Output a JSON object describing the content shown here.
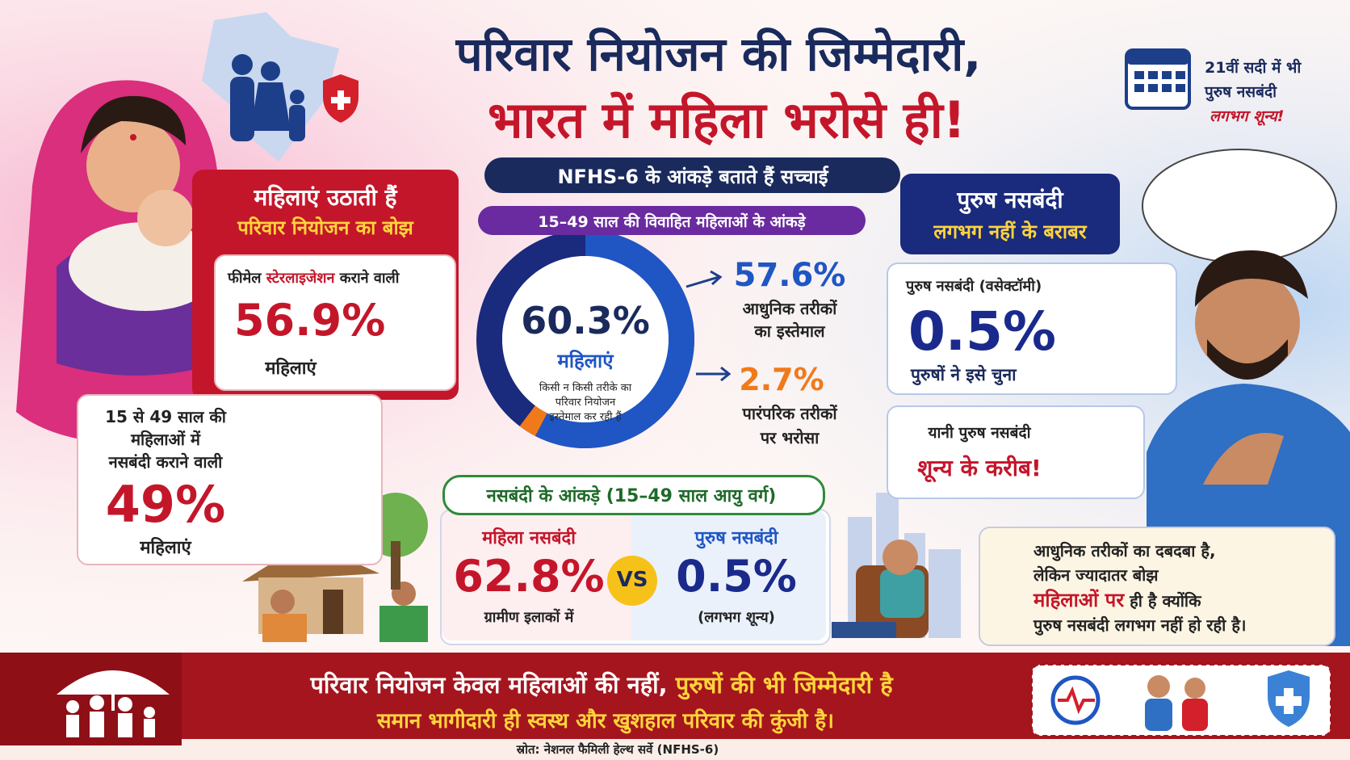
{
  "title": {
    "line1": "परिवार नियोजन की जिम्मेदारी,",
    "line2": "भारत में महिला भरोसे ही!"
  },
  "badge": {
    "line1": "21वीं सदी में भी",
    "line2": "पुरुष नसबंदी",
    "line3": "लगभग शून्य!"
  },
  "subtitle_banner": "NFHS-6 के आंकड़े बताते हैं सच्चाई",
  "donut_banner": "15–49 साल की विवाहित महिलाओं के आंकड़े",
  "left_panel": {
    "heading_1": "महिलाएं उठाती हैं",
    "heading_2": "परिवार नियोजन का बोझ",
    "card1": {
      "label_parts": [
        "फीमेल ",
        "स्टेरलाइजेशन",
        " कराने वाली"
      ],
      "value": "56.9%",
      "caption": "महिलाएं"
    },
    "card2": {
      "lines": [
        "15 से 49 साल की",
        "महिलाओं में",
        "नसबंदी कराने वाली"
      ],
      "value": "49%",
      "caption": "महिलाएं"
    }
  },
  "donut": {
    "center_value": "60.3%",
    "center_caption": "महिलाएं",
    "center_note": [
      "किसी न किसी तरीके का",
      "परिवार नियोजन",
      "इस्तेमाल कर रही हैं"
    ],
    "segments": [
      {
        "value": 57.6,
        "label": "57.6%",
        "caption": [
          "आधुनिक तरीकों",
          "का इस्तेमाल"
        ],
        "color": "#1f56c4"
      },
      {
        "value": 2.7,
        "label": "2.7%",
        "caption": [
          "पारंपरिक तरीकों",
          "पर भरोसा"
        ],
        "color": "#f07a1a"
      }
    ]
  },
  "comparison": {
    "heading": "नसबंदी के आंकड़े (15–49 साल आयु वर्ग)",
    "female": {
      "title": "महिला नसबंदी",
      "value": "62.8%",
      "caption": "ग्रामीण इलाकों में"
    },
    "vs": "VS",
    "male": {
      "title": "पुरुष नसबंदी",
      "value": "0.5%",
      "caption": "(लगभग शून्य)"
    }
  },
  "right_panel": {
    "heading_1": "पुरुष नसबंदी",
    "heading_2": "लगभग नहीं के बराबर",
    "card1": {
      "title": "पुरुष नसबंदी (वसेक्टॉमी)",
      "value": "0.5%",
      "caption": "पुरुषों ने इसे चुना"
    },
    "card2": {
      "line1": "यानी पुरुष नसबंदी",
      "line2": "शून्य के करीब!"
    }
  },
  "note": {
    "line1": "आधुनिक तरीकों का दबदबा है,",
    "line2": "लेकिन ज्यादातर बोझ",
    "line3_red": "महिलाओं पर",
    "line3_rest": " ही है क्योंकि",
    "line4": "पुरुष नसबंदी लगभग नहीं हो रही है।"
  },
  "footer": {
    "line1_white": "परिवार नियोजन केवल महिलाओं की नहीं, ",
    "line1_yellow": "पुरुषों की भी जिम्मेदारी है",
    "line2": "समान भागीदारी ही स्वस्थ और खुशहाल परिवार की कुंजी है।",
    "source": "स्रोत: नेशनल फैमिली हेल्थ सर्वे (NFHS-6)"
  }
}
